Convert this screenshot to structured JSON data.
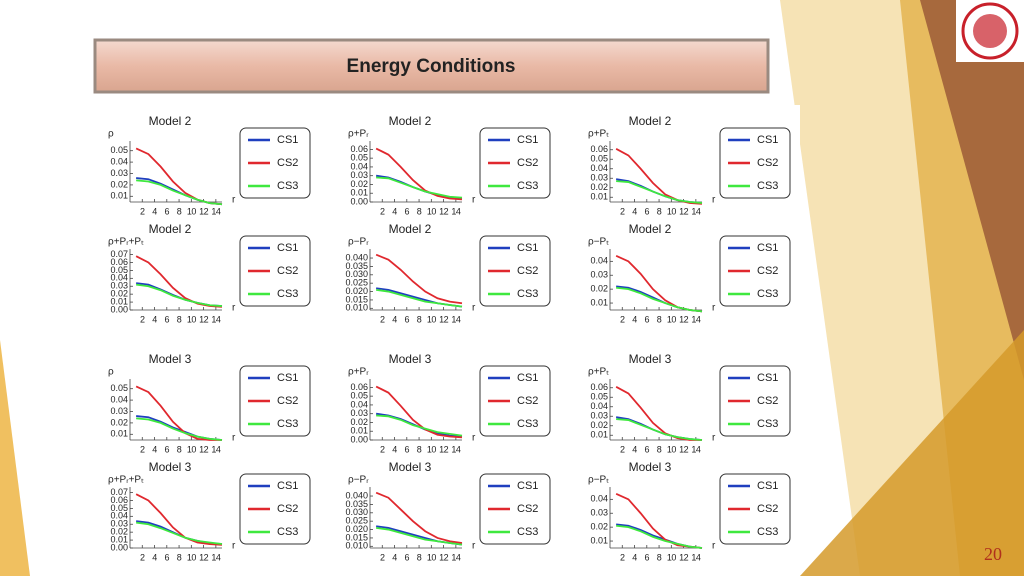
{
  "slide": {
    "title": "Energy Conditions",
    "page_number": "20"
  },
  "chart_data": [
    {
      "type": "line",
      "title": "Model 2",
      "ylabel": "ρ",
      "xlabel": "r",
      "x": [
        1,
        3,
        5,
        7,
        9,
        11,
        13,
        15
      ],
      "xlim": [
        0,
        15
      ],
      "xticks": [
        2,
        4,
        6,
        8,
        10,
        12,
        14
      ],
      "ylim": [
        0.005,
        0.055
      ],
      "yticks": [
        0.01,
        0.02,
        0.03,
        0.04,
        0.05
      ],
      "series": [
        {
          "name": "CS1",
          "color": "#1f3fbf",
          "values": [
            0.026,
            0.025,
            0.021,
            0.016,
            0.011,
            0.007,
            0.004,
            0.003
          ]
        },
        {
          "name": "CS2",
          "color": "#e0282e",
          "values": [
            0.052,
            0.047,
            0.036,
            0.023,
            0.013,
            0.007,
            0.004,
            0.003
          ]
        },
        {
          "name": "CS3",
          "color": "#3ee83e",
          "values": [
            0.024,
            0.023,
            0.02,
            0.015,
            0.011,
            0.007,
            0.004,
            0.003
          ]
        }
      ]
    },
    {
      "type": "line",
      "title": "Model 2",
      "ylabel": "ρ+Pᵣ",
      "xlabel": "r",
      "x": [
        1,
        3,
        5,
        7,
        9,
        11,
        13,
        15
      ],
      "xlim": [
        0,
        15
      ],
      "xticks": [
        2,
        4,
        6,
        8,
        10,
        12,
        14
      ],
      "ylim": [
        0,
        0.065
      ],
      "yticks": [
        {
          "value": 0,
          "label": "0.00"
        },
        0.01,
        0.02,
        0.03,
        0.04,
        0.05,
        0.06
      ],
      "series": [
        {
          "name": "CS1",
          "color": "#1f3fbf",
          "values": [
            0.03,
            0.028,
            0.023,
            0.017,
            0.012,
            0.008,
            0.005,
            0.004
          ]
        },
        {
          "name": "CS2",
          "color": "#e0282e",
          "values": [
            0.061,
            0.054,
            0.04,
            0.025,
            0.013,
            0.007,
            0.004,
            0.003
          ]
        },
        {
          "name": "CS3",
          "color": "#3ee83e",
          "values": [
            0.028,
            0.027,
            0.022,
            0.017,
            0.012,
            0.009,
            0.006,
            0.005
          ]
        }
      ]
    },
    {
      "type": "line",
      "title": "Model 2",
      "ylabel": "ρ+Pₜ",
      "xlabel": "r",
      "x": [
        1,
        3,
        5,
        7,
        9,
        11,
        13,
        15
      ],
      "xlim": [
        0,
        15
      ],
      "xticks": [
        2,
        4,
        6,
        8,
        10,
        12,
        14
      ],
      "ylim": [
        0.005,
        0.065
      ],
      "yticks": [
        0.01,
        0.02,
        0.03,
        0.04,
        0.05,
        0.06
      ],
      "series": [
        {
          "name": "CS1",
          "color": "#1f3fbf",
          "values": [
            0.029,
            0.027,
            0.022,
            0.016,
            0.011,
            0.007,
            0.005,
            0.004
          ]
        },
        {
          "name": "CS2",
          "color": "#e0282e",
          "values": [
            0.061,
            0.054,
            0.04,
            0.025,
            0.013,
            0.007,
            0.004,
            0.003
          ]
        },
        {
          "name": "CS3",
          "color": "#3ee83e",
          "values": [
            0.027,
            0.026,
            0.021,
            0.016,
            0.011,
            0.007,
            0.005,
            0.004
          ]
        }
      ]
    },
    {
      "type": "line",
      "title": "Model 2",
      "ylabel": "ρ+Pᵣ+Pₜ",
      "xlabel": "r",
      "x": [
        1,
        3,
        5,
        7,
        9,
        11,
        13,
        15
      ],
      "xlim": [
        0,
        15
      ],
      "xticks": [
        2,
        4,
        6,
        8,
        10,
        12,
        14
      ],
      "ylim": [
        0,
        0.072
      ],
      "yticks": [
        {
          "value": 0,
          "label": "0.00"
        },
        0.01,
        0.02,
        0.03,
        0.04,
        0.05,
        0.06,
        0.07
      ],
      "series": [
        {
          "name": "CS1",
          "color": "#1f3fbf",
          "values": [
            0.034,
            0.032,
            0.026,
            0.019,
            0.013,
            0.009,
            0.006,
            0.005
          ]
        },
        {
          "name": "CS2",
          "color": "#e0282e",
          "values": [
            0.068,
            0.06,
            0.045,
            0.028,
            0.015,
            0.008,
            0.005,
            0.004
          ]
        },
        {
          "name": "CS3",
          "color": "#3ee83e",
          "values": [
            0.032,
            0.03,
            0.025,
            0.018,
            0.013,
            0.009,
            0.006,
            0.005
          ]
        }
      ]
    },
    {
      "type": "line",
      "title": "Model 2",
      "ylabel": "ρ−Pᵣ",
      "xlabel": "r",
      "x": [
        1,
        3,
        5,
        7,
        9,
        11,
        13,
        15
      ],
      "xlim": [
        0,
        15
      ],
      "xticks": [
        2,
        4,
        6,
        8,
        10,
        12,
        14
      ],
      "ylim": [
        0.009,
        0.043
      ],
      "yticks": [
        {
          "value": 0.01,
          "label": "0.010"
        },
        0.015,
        {
          "value": 0.02,
          "label": "0.020"
        },
        0.025,
        {
          "value": 0.03,
          "label": "0.030"
        },
        0.035,
        {
          "value": 0.04,
          "label": "0.040"
        }
      ],
      "series": [
        {
          "name": "CS1",
          "color": "#1f3fbf",
          "values": [
            0.022,
            0.021,
            0.019,
            0.017,
            0.015,
            0.013,
            0.012,
            0.011
          ]
        },
        {
          "name": "CS2",
          "color": "#e0282e",
          "values": [
            0.042,
            0.039,
            0.033,
            0.026,
            0.02,
            0.016,
            0.014,
            0.013
          ]
        },
        {
          "name": "CS3",
          "color": "#3ee83e",
          "values": [
            0.021,
            0.02,
            0.018,
            0.016,
            0.014,
            0.013,
            0.012,
            0.011
          ]
        }
      ]
    },
    {
      "type": "line",
      "title": "Model 2",
      "ylabel": "ρ−Pₜ",
      "xlabel": "r",
      "x": [
        1,
        3,
        5,
        7,
        9,
        11,
        13,
        15
      ],
      "xlim": [
        0,
        15
      ],
      "xticks": [
        2,
        4,
        6,
        8,
        10,
        12,
        14
      ],
      "ylim": [
        0.005,
        0.046
      ],
      "yticks": [
        0.01,
        0.02,
        0.03,
        0.04
      ],
      "series": [
        {
          "name": "CS1",
          "color": "#1f3fbf",
          "values": [
            0.022,
            0.021,
            0.018,
            0.014,
            0.01,
            0.007,
            0.005,
            0.004
          ]
        },
        {
          "name": "CS2",
          "color": "#e0282e",
          "values": [
            0.044,
            0.04,
            0.031,
            0.02,
            0.012,
            0.007,
            0.005,
            0.004
          ]
        },
        {
          "name": "CS3",
          "color": "#3ee83e",
          "values": [
            0.021,
            0.02,
            0.017,
            0.013,
            0.01,
            0.007,
            0.005,
            0.004
          ]
        }
      ]
    },
    {
      "type": "line",
      "title": "Model 3",
      "ylabel": "ρ",
      "xlabel": "r",
      "x": [
        1,
        3,
        5,
        7,
        9,
        11,
        13,
        15
      ],
      "xlim": [
        0,
        15
      ],
      "xticks": [
        2,
        4,
        6,
        8,
        10,
        12,
        14
      ],
      "ylim": [
        0.005,
        0.055
      ],
      "yticks": [
        0.01,
        0.02,
        0.03,
        0.04,
        0.05
      ],
      "series": [
        {
          "name": "CS1",
          "color": "#1f3fbf",
          "values": [
            0.026,
            0.025,
            0.021,
            0.016,
            0.012,
            0.008,
            0.006,
            0.005
          ]
        },
        {
          "name": "CS2",
          "color": "#e0282e",
          "values": [
            0.052,
            0.047,
            0.035,
            0.021,
            0.011,
            0.006,
            0.005,
            0.005
          ]
        },
        {
          "name": "CS3",
          "color": "#3ee83e",
          "values": [
            0.024,
            0.023,
            0.02,
            0.015,
            0.011,
            0.008,
            0.006,
            0.005
          ]
        }
      ]
    },
    {
      "type": "line",
      "title": "Model 3",
      "ylabel": "ρ+Pᵣ",
      "xlabel": "r",
      "x": [
        1,
        3,
        5,
        7,
        9,
        11,
        13,
        15
      ],
      "xlim": [
        0,
        15
      ],
      "xticks": [
        2,
        4,
        6,
        8,
        10,
        12,
        14
      ],
      "ylim": [
        0,
        0.065
      ],
      "yticks": [
        {
          "value": 0,
          "label": "0.00"
        },
        0.01,
        0.02,
        0.03,
        0.04,
        0.05,
        0.06
      ],
      "series": [
        {
          "name": "CS1",
          "color": "#1f3fbf",
          "values": [
            0.03,
            0.028,
            0.024,
            0.018,
            0.012,
            0.008,
            0.005,
            0.004
          ]
        },
        {
          "name": "CS2",
          "color": "#e0282e",
          "values": [
            0.061,
            0.054,
            0.039,
            0.023,
            0.012,
            0.006,
            0.004,
            0.003
          ]
        },
        {
          "name": "CS3",
          "color": "#3ee83e",
          "values": [
            0.028,
            0.027,
            0.023,
            0.017,
            0.013,
            0.009,
            0.007,
            0.005
          ]
        }
      ]
    },
    {
      "type": "line",
      "title": "Model 3",
      "ylabel": "ρ+Pₜ",
      "xlabel": "r",
      "x": [
        1,
        3,
        5,
        7,
        9,
        11,
        13,
        15
      ],
      "xlim": [
        0,
        15
      ],
      "xticks": [
        2,
        4,
        6,
        8,
        10,
        12,
        14
      ],
      "ylim": [
        0.005,
        0.065
      ],
      "yticks": [
        0.01,
        0.02,
        0.03,
        0.04,
        0.05,
        0.06
      ],
      "series": [
        {
          "name": "CS1",
          "color": "#1f3fbf",
          "values": [
            0.029,
            0.027,
            0.022,
            0.016,
            0.011,
            0.008,
            0.006,
            0.005
          ]
        },
        {
          "name": "CS2",
          "color": "#e0282e",
          "values": [
            0.061,
            0.054,
            0.039,
            0.023,
            0.012,
            0.007,
            0.005,
            0.005
          ]
        },
        {
          "name": "CS3",
          "color": "#3ee83e",
          "values": [
            0.027,
            0.026,
            0.021,
            0.016,
            0.011,
            0.008,
            0.006,
            0.005
          ]
        }
      ]
    },
    {
      "type": "line",
      "title": "Model 3",
      "ylabel": "ρ+Pᵣ+Pₜ",
      "xlabel": "r",
      "x": [
        1,
        3,
        5,
        7,
        9,
        11,
        13,
        15
      ],
      "xlim": [
        0,
        15
      ],
      "xticks": [
        2,
        4,
        6,
        8,
        10,
        12,
        14
      ],
      "ylim": [
        0,
        0.072
      ],
      "yticks": [
        {
          "value": 0,
          "label": "0.00"
        },
        0.01,
        0.02,
        0.03,
        0.04,
        0.05,
        0.06,
        0.07
      ],
      "series": [
        {
          "name": "CS1",
          "color": "#1f3fbf",
          "values": [
            0.034,
            0.032,
            0.027,
            0.02,
            0.013,
            0.009,
            0.006,
            0.005
          ]
        },
        {
          "name": "CS2",
          "color": "#e0282e",
          "values": [
            0.068,
            0.06,
            0.044,
            0.026,
            0.013,
            0.007,
            0.005,
            0.004
          ]
        },
        {
          "name": "CS3",
          "color": "#3ee83e",
          "values": [
            0.032,
            0.03,
            0.025,
            0.019,
            0.013,
            0.009,
            0.007,
            0.005
          ]
        }
      ]
    },
    {
      "type": "line",
      "title": "Model 3",
      "ylabel": "ρ−Pᵣ",
      "xlabel": "r",
      "x": [
        1,
        3,
        5,
        7,
        9,
        11,
        13,
        15
      ],
      "xlim": [
        0,
        15
      ],
      "xticks": [
        2,
        4,
        6,
        8,
        10,
        12,
        14
      ],
      "ylim": [
        0.009,
        0.043
      ],
      "yticks": [
        {
          "value": 0.01,
          "label": "0.010"
        },
        0.015,
        {
          "value": 0.02,
          "label": "0.020"
        },
        0.025,
        {
          "value": 0.03,
          "label": "0.030"
        },
        0.035,
        {
          "value": 0.04,
          "label": "0.040"
        }
      ],
      "series": [
        {
          "name": "CS1",
          "color": "#1f3fbf",
          "values": [
            0.022,
            0.021,
            0.019,
            0.017,
            0.015,
            0.013,
            0.012,
            0.011
          ]
        },
        {
          "name": "CS2",
          "color": "#e0282e",
          "values": [
            0.042,
            0.039,
            0.032,
            0.025,
            0.019,
            0.015,
            0.013,
            0.012
          ]
        },
        {
          "name": "CS3",
          "color": "#3ee83e",
          "values": [
            0.021,
            0.02,
            0.018,
            0.016,
            0.014,
            0.013,
            0.012,
            0.011
          ]
        }
      ]
    },
    {
      "type": "line",
      "title": "Model 3",
      "ylabel": "ρ−Pₜ",
      "xlabel": "r",
      "x": [
        1,
        3,
        5,
        7,
        9,
        11,
        13,
        15
      ],
      "xlim": [
        0,
        15
      ],
      "xticks": [
        2,
        4,
        6,
        8,
        10,
        12,
        14
      ],
      "ylim": [
        0.005,
        0.046
      ],
      "yticks": [
        0.01,
        0.02,
        0.03,
        0.04
      ],
      "series": [
        {
          "name": "CS1",
          "color": "#1f3fbf",
          "values": [
            0.022,
            0.021,
            0.018,
            0.014,
            0.011,
            0.008,
            0.006,
            0.005
          ]
        },
        {
          "name": "CS2",
          "color": "#e0282e",
          "values": [
            0.044,
            0.04,
            0.03,
            0.019,
            0.011,
            0.007,
            0.006,
            0.005
          ]
        },
        {
          "name": "CS3",
          "color": "#3ee83e",
          "values": [
            0.021,
            0.02,
            0.017,
            0.013,
            0.01,
            0.008,
            0.006,
            0.005
          ]
        }
      ]
    }
  ]
}
